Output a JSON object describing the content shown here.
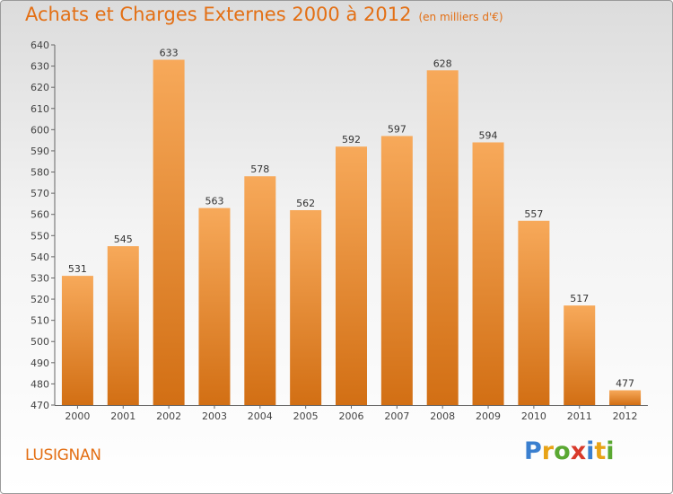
{
  "header": {
    "title": "Achats et Charges Externes 2000 à 2012",
    "subtitle": "(en milliers d'€)"
  },
  "footer": {
    "place": "LUSIGNAN",
    "logo": {
      "text": "Proxiti",
      "letters": [
        {
          "char": "P",
          "color": "#3a7fcf"
        },
        {
          "char": "r",
          "color": "#e8a317"
        },
        {
          "char": "o",
          "color": "#5aa832"
        },
        {
          "char": "x",
          "color": "#d93a2b"
        },
        {
          "char": "i",
          "color": "#3a7fcf"
        },
        {
          "char": "t",
          "color": "#e8a317"
        },
        {
          "char": "i",
          "color": "#5aa832"
        }
      ]
    }
  },
  "colors": {
    "bar_top": "#f7a95a",
    "bar_bottom": "#d26f14",
    "title": "#e36f14"
  },
  "chart_data": {
    "type": "bar",
    "title": "Achats et Charges Externes 2000 à 2012",
    "subtitle": "(en milliers d'€)",
    "xlabel": "",
    "ylabel": "",
    "categories": [
      "2000",
      "2001",
      "2002",
      "2003",
      "2004",
      "2005",
      "2006",
      "2007",
      "2008",
      "2009",
      "2010",
      "2011",
      "2012"
    ],
    "values": [
      531,
      545,
      633,
      563,
      578,
      562,
      592,
      597,
      628,
      594,
      557,
      517,
      477
    ],
    "ylim": [
      470,
      640
    ],
    "yticks": [
      470,
      480,
      490,
      500,
      510,
      520,
      530,
      540,
      550,
      560,
      570,
      580,
      590,
      600,
      610,
      620,
      630,
      640
    ],
    "grid": false,
    "legend": "none"
  }
}
